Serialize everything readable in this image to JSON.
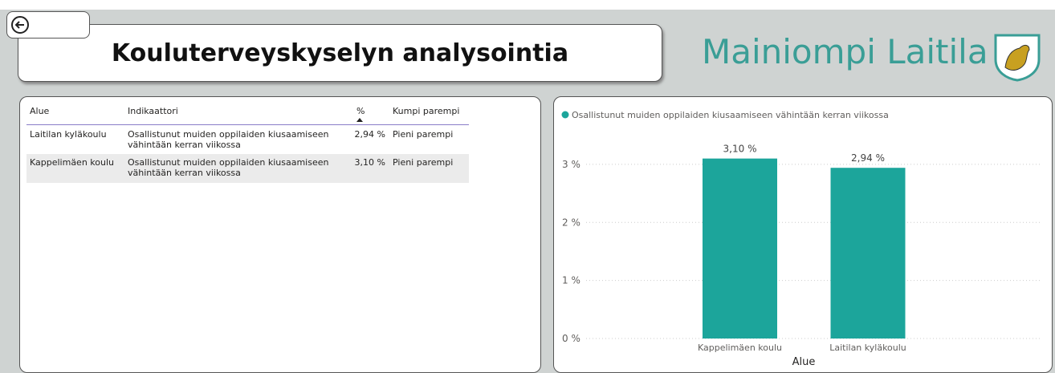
{
  "header": {
    "title": "Kouluterveyskyselyn analysointia",
    "brand": "Mainiompi Laitila"
  },
  "table": {
    "columns": [
      "Alue",
      "Indikaattori",
      "%",
      "Kumpi parempi"
    ],
    "rows": [
      [
        "Laitilan kyläkoulu",
        "Osallistunut muiden oppilaiden kiusaamiseen vähintään kerran viikossa",
        "2,94 %",
        "Pieni parempi"
      ],
      [
        "Kappelimäen koulu",
        "Osallistunut muiden oppilaiden kiusaamiseen vähintään kerran viikossa",
        "3,10 %",
        "Pieni parempi"
      ]
    ]
  },
  "chart_data": {
    "type": "bar",
    "x_label": "Alue",
    "categories": [
      "Kappelimäen koulu",
      "Laitilan kyläkoulu"
    ],
    "series": [
      {
        "name": "Osallistunut muiden oppilaiden kiusaamiseen vähintään kerran viikossa",
        "color": "#1ca59b",
        "values": [
          3.1,
          2.94
        ],
        "value_labels": [
          "3,10 %",
          "2,94 %"
        ]
      }
    ],
    "ylim": [
      0,
      3.2
    ],
    "yticks": [
      {
        "value": 0,
        "label": "0 %"
      },
      {
        "value": 1,
        "label": "1 %"
      },
      {
        "value": 2,
        "label": "2 %"
      },
      {
        "value": 3,
        "label": "3 %"
      }
    ],
    "grid": true
  }
}
